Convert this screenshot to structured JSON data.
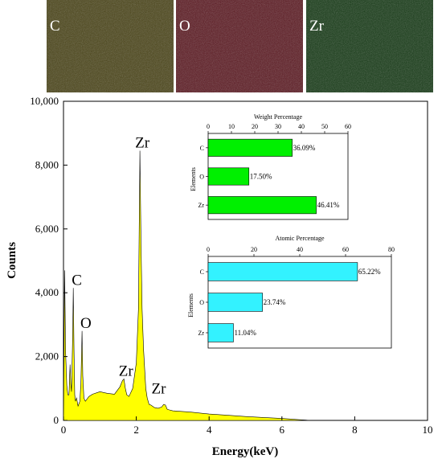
{
  "maps": [
    {
      "label": "C",
      "color": "#4a4418"
    },
    {
      "label": "O",
      "color": "#5c1a22"
    },
    {
      "label": "Zr",
      "color": "#163a16"
    }
  ],
  "chart_data": [
    {
      "type": "area",
      "xlabel": "Energy(keV)",
      "ylabel": "Counts",
      "xlim": [
        0,
        10
      ],
      "ylim": [
        0,
        10000
      ],
      "x_ticks": [
        0,
        2,
        4,
        6,
        8,
        10
      ],
      "y_ticks": [
        0,
        2000,
        4000,
        6000,
        8000,
        10000
      ],
      "x_tick_labels": [
        "0",
        "2",
        "4",
        "6",
        "8",
        "10"
      ],
      "y_tick_labels": [
        "0",
        "2,000",
        "4,000",
        "6,000",
        "8,000",
        "10,000"
      ],
      "fill_color": "#ffff00",
      "series": [
        {
          "x": [
            0,
            0.03,
            0.06,
            0.09,
            0.12,
            0.15,
            0.18,
            0.2,
            0.22,
            0.25,
            0.27,
            0.29,
            0.31,
            0.33,
            0.36,
            0.4,
            0.45,
            0.48,
            0.51,
            0.53,
            0.56,
            0.6,
            0.7,
            0.8,
            1.0,
            1.2,
            1.4,
            1.55,
            1.62,
            1.66,
            1.7,
            1.74,
            1.8,
            1.9,
            2.0,
            2.06,
            2.1,
            2.13,
            2.16,
            2.2,
            2.26,
            2.3,
            2.35,
            2.4,
            2.5,
            2.6,
            2.7,
            2.75,
            2.8,
            2.85,
            2.9,
            3.0,
            3.5,
            4.0,
            4.5,
            5.0,
            5.5,
            6.0,
            6.5,
            6.8
          ],
          "y": [
            0,
            4700,
            2100,
            1100,
            800,
            800,
            1750,
            1150,
            900,
            2500,
            4150,
            2200,
            800,
            600,
            700,
            450,
            600,
            1200,
            2800,
            1400,
            700,
            600,
            750,
            820,
            900,
            850,
            820,
            1050,
            1250,
            1300,
            1000,
            800,
            750,
            1000,
            1800,
            3500,
            8450,
            5500,
            3500,
            2200,
            1000,
            700,
            500,
            480,
            400,
            380,
            420,
            500,
            480,
            350,
            330,
            300,
            260,
            200,
            160,
            120,
            90,
            60,
            20,
            0
          ]
        }
      ],
      "annotations": [
        {
          "text": "C",
          "x": 0.3,
          "y": 4250
        },
        {
          "text": "O",
          "x": 0.55,
          "y": 2900
        },
        {
          "text": "Zr",
          "x": 2.1,
          "y": 8550
        },
        {
          "text": "Zr",
          "x": 1.65,
          "y": 1400
        },
        {
          "text": "Zr",
          "x": 2.55,
          "y": 850
        }
      ]
    },
    {
      "type": "bar",
      "orientation": "horizontal",
      "title": "Weight Percentage",
      "ylabel": "Elements",
      "categories": [
        "C",
        "O",
        "Zr"
      ],
      "values": [
        36.09,
        17.5,
        46.41
      ],
      "value_labels": [
        "36.09%",
        "17.50%",
        "46.41%"
      ],
      "xlim": [
        0,
        60
      ],
      "x_ticks": [
        0,
        10,
        20,
        30,
        40,
        50,
        60
      ],
      "x_tick_labels": [
        "0",
        "10",
        "20",
        "30",
        "40",
        "50",
        "60"
      ],
      "bar_color": "#00f000"
    },
    {
      "type": "bar",
      "orientation": "horizontal",
      "title": "Atomic Percentage",
      "ylabel": "Elements",
      "categories": [
        "C",
        "O",
        "Zr"
      ],
      "values": [
        65.22,
        23.74,
        11.04
      ],
      "value_labels": [
        "65.22%",
        "23.74%",
        "11.04%"
      ],
      "xlim": [
        0,
        80
      ],
      "x_ticks": [
        0,
        20,
        40,
        60,
        80
      ],
      "x_tick_labels": [
        "0",
        "20",
        "40",
        "60",
        "80"
      ],
      "bar_color": "#33f2ff"
    }
  ]
}
